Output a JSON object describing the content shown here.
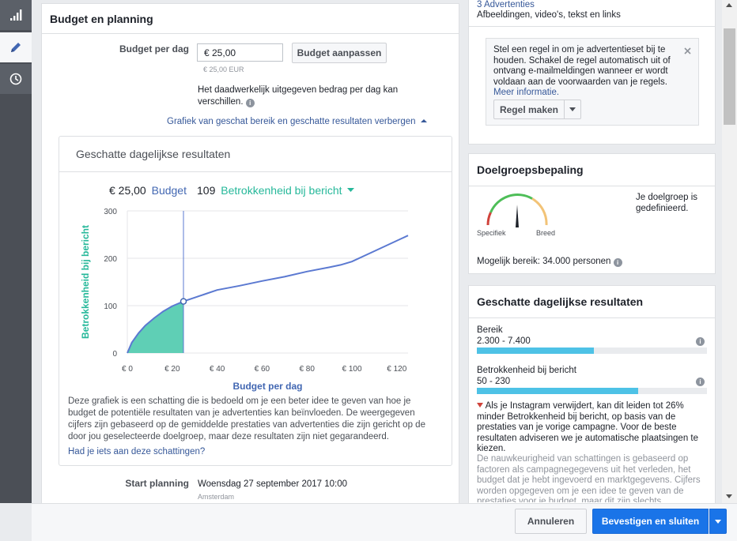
{
  "nav": {
    "items": [
      {
        "name": "performance",
        "icon": "bar-chart-icon"
      },
      {
        "name": "edit",
        "icon": "pencil-icon"
      },
      {
        "name": "history",
        "icon": "clock-icon"
      }
    ]
  },
  "budget_card": {
    "title": "Budget en planning",
    "budget_label": "Budget per dag",
    "budget_value": "€ 25,00",
    "budget_hint": "€ 25,00 EUR",
    "adjust_button": "Budget aanpassen",
    "spend_note": "Het daadwerkelijk uitgegeven bedrag per dag kan verschillen.",
    "toggle_link": "Grafiek van geschat bereik en geschatte resultaten verbergen",
    "schedule_label": "Start planning",
    "schedule_value": "Woensdag 27 september 2017 10:00",
    "timezone": "Amsterdam"
  },
  "estimates_chart": {
    "title": "Geschatte dagelijkse resultaten",
    "summary_budget_value": "€ 25,00",
    "summary_budget_label": "Budget",
    "summary_result_value": "109",
    "summary_result_label": "Betrokkenheid bij bericht",
    "disclaimer": "Deze grafiek is een schatting die is bedoeld om je een beter idee te geven van hoe je budget de potentiële resultaten van je advertenties kan beïnvloeden. De weergegeven cijfers zijn gebaseerd op de gemiddelde prestaties van advertenties die zijn gericht op de door jou geselecteerde doelgroep, maar deze resultaten zijn niet gegarandeerd.",
    "feedback_link": "Had je iets aan deze schattingen?"
  },
  "chart_data": {
    "type": "line",
    "xlabel": "Budget per dag",
    "ylabel": "Betrokkenheid bij bericht",
    "xlim": [
      0,
      125
    ],
    "ylim": [
      0,
      300
    ],
    "x_ticks": [
      {
        "value": 0,
        "label": "€ 0"
      },
      {
        "value": 20,
        "label": "€ 20"
      },
      {
        "value": 40,
        "label": "€ 40"
      },
      {
        "value": 60,
        "label": "€ 60"
      },
      {
        "value": 80,
        "label": "€ 80"
      },
      {
        "value": 100,
        "label": "€ 100"
      },
      {
        "value": 120,
        "label": "€ 120"
      }
    ],
    "y_ticks": [
      {
        "value": 0,
        "label": "0"
      },
      {
        "value": 100,
        "label": "100"
      },
      {
        "value": 200,
        "label": "200"
      },
      {
        "value": 300,
        "label": "300"
      }
    ],
    "series": [
      {
        "x": [
          0,
          2,
          5,
          8,
          12,
          16,
          20,
          25,
          30,
          35,
          40,
          50,
          60,
          70,
          80,
          90,
          95,
          100,
          110,
          125
        ],
        "y": [
          0,
          22,
          42,
          58,
          74,
          88,
          99,
          109,
          117,
          125,
          133,
          142,
          152,
          161,
          172,
          181,
          186,
          193,
          215,
          248
        ]
      }
    ],
    "selected": {
      "x": 25,
      "y": 109
    },
    "grid": true
  },
  "ads_card": {
    "title": "3 Advertenties",
    "subtitle": "Afbeeldingen, video's, tekst en links",
    "rule_text": "Stel een regel in om je advertentieset bij te houden. Schakel de regel automatisch uit of ontvang e-mailmeldingen wanneer er wordt voldaan aan de voorwaarden van je regels.",
    "rule_link": "Meer informatie.",
    "rule_button": "Regel maken"
  },
  "audience_card": {
    "title": "Doelgroepsbepaling",
    "gauge_left": "Specifiek",
    "gauge_right": "Breed",
    "status": "Je doelgroep is gedefinieerd.",
    "reach": "Mogelijk bereik: 34.000 personen"
  },
  "results_card": {
    "title": "Geschatte dagelijkse resultaten",
    "metrics": [
      {
        "label": "Bereik",
        "range": "2.300 - 7.400",
        "fill": 0.51
      },
      {
        "label": "Betrokkenheid bij bericht",
        "range": "50 - 230",
        "fill": 0.7
      }
    ],
    "warning": "Als je Instagram verwijdert, kan dit leiden tot 26% minder Betrokkenheid bij bericht, op basis van de prestaties van je vorige campagne. Voor de beste resultaten adviseren we je automatische plaatsingen te kiezen.",
    "accuracy": "De nauwkeurigheid van schattingen is gebaseerd op factoren als campagnegegevens uit het verleden, het budget dat je hebt ingevoerd en marktgegevens. Cijfers worden opgegeven om je een idee te geven van de prestaties voor je budget, maar dit zijn slechts schattingen en geen garantie."
  },
  "footer": {
    "cancel": "Annuleren",
    "confirm": "Bevestigen en sluiten"
  },
  "colors": {
    "accent": "#4267b2",
    "teal": "#26b89a",
    "primary": "#1a74e8",
    "bar": "#4ec2e6"
  }
}
